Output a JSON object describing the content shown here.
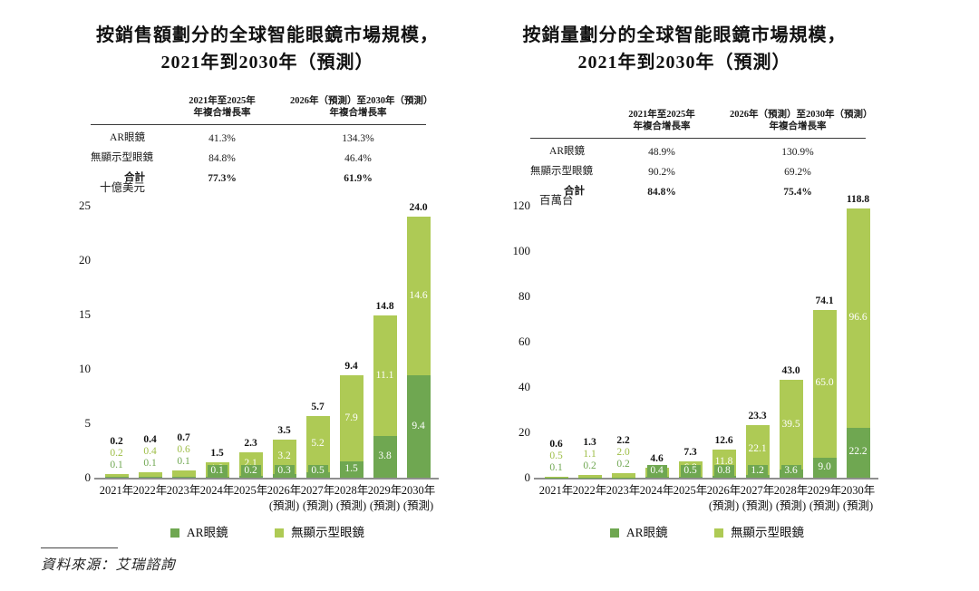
{
  "source": {
    "label": "資料來源：艾瑞諮詢"
  },
  "colors": {
    "ar": "#6fa751",
    "nondisplay": "#aeca55",
    "ar_value_label": "#6fa751",
    "nondisplay_value_label": "#9dbd45",
    "total_label": "#111111",
    "axis_line": "#8f8f8f"
  },
  "chart_data": [
    {
      "type": "bar",
      "stacked": true,
      "title_line1": "按銷售額劃分的全球智能眼鏡市場規模，",
      "title_line2": "2021年到2030年（預測）",
      "unit": "十億美元",
      "table": {
        "col1_header_line1": "2021年至2025年",
        "col1_header_line2": "年複合增長率",
        "col2_header_line1": "2026年（預測）至2030年（預測）",
        "col2_header_line2": "年複合增長率",
        "rows": [
          {
            "label": "AR眼鏡",
            "cagr_2021_2025": "41.3%",
            "cagr_2026_2030": "134.3%"
          },
          {
            "label": "無顯示型眼鏡",
            "cagr_2021_2025": "84.8%",
            "cagr_2026_2030": "46.4%"
          },
          {
            "label": "合計",
            "cagr_2021_2025": "77.3%",
            "cagr_2026_2030": "61.9%"
          }
        ]
      },
      "categories": [
        "2021年",
        "2022年",
        "2023年",
        "2024年",
        "2025年",
        "2026年",
        "2027年",
        "2028年",
        "2029年",
        "2030年"
      ],
      "forecast_suffix": "(預測)",
      "forecast_from_index": 5,
      "series": [
        {
          "name": "AR眼鏡",
          "values": [
            0.1,
            0.1,
            0.1,
            0.1,
            0.2,
            0.3,
            0.5,
            1.5,
            3.8,
            9.4
          ]
        },
        {
          "name": "無顯示型眼鏡",
          "values": [
            0.2,
            0.4,
            0.6,
            1.3,
            2.1,
            3.2,
            5.2,
            7.9,
            11.1,
            14.6
          ]
        }
      ],
      "totals": [
        0.2,
        0.4,
        0.7,
        1.5,
        2.3,
        3.5,
        5.7,
        9.4,
        14.8,
        24.0
      ],
      "ylim": [
        0,
        25
      ],
      "yticks": [
        0,
        5,
        10,
        15,
        20,
        25
      ],
      "inside_labels_from_index": 3,
      "grid": false,
      "legend_position": "bottom"
    },
    {
      "type": "bar",
      "stacked": true,
      "title_line1": "按銷量劃分的全球智能眼鏡市場規模，",
      "title_line2": "2021年到2030年（預測）",
      "unit": "百萬台",
      "table": {
        "col1_header_line1": "2021年至2025年",
        "col1_header_line2": "年複合增長率",
        "col2_header_line1": "2026年（預測）至2030年（預測）",
        "col2_header_line2": "年複合增長率",
        "rows": [
          {
            "label": "AR眼鏡",
            "cagr_2021_2025": "48.9%",
            "cagr_2026_2030": "130.9%"
          },
          {
            "label": "無顯示型眼鏡",
            "cagr_2021_2025": "90.2%",
            "cagr_2026_2030": "69.2%"
          },
          {
            "label": "合計",
            "cagr_2021_2025": "84.8%",
            "cagr_2026_2030": "75.4%"
          }
        ]
      },
      "categories": [
        "2021年",
        "2022年",
        "2023年",
        "2024年",
        "2025年",
        "2026年",
        "2027年",
        "2028年",
        "2029年",
        "2030年"
      ],
      "forecast_suffix": "(預測)",
      "forecast_from_index": 5,
      "series": [
        {
          "name": "AR眼鏡",
          "values": [
            0.1,
            0.2,
            0.2,
            0.4,
            0.5,
            0.8,
            1.2,
            3.6,
            9.0,
            22.2
          ]
        },
        {
          "name": "無顯示型眼鏡",
          "values": [
            0.5,
            1.1,
            2.0,
            4.2,
            6.8,
            11.8,
            22.1,
            39.5,
            65.0,
            96.6
          ]
        }
      ],
      "totals": [
        0.6,
        1.3,
        2.2,
        4.6,
        7.3,
        12.6,
        23.3,
        43.0,
        74.1,
        118.8
      ],
      "ylim": [
        0,
        120
      ],
      "yticks": [
        0,
        20,
        40,
        60,
        80,
        100,
        120
      ],
      "inside_labels_from_index": 3,
      "grid": false,
      "legend_position": "bottom"
    }
  ]
}
